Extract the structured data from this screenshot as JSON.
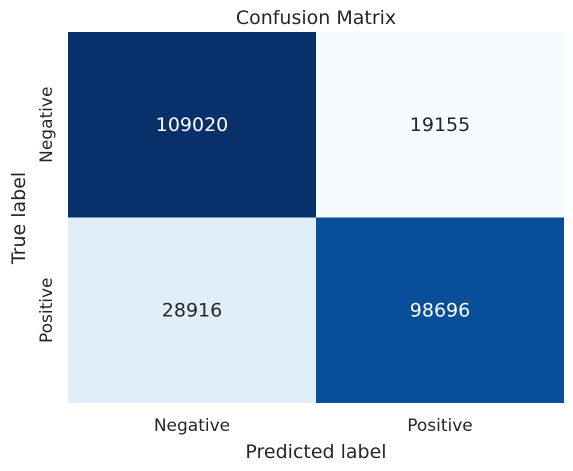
{
  "chart_data": {
    "type": "heatmap",
    "title": "Confusion Matrix",
    "xlabel": "Predicted label",
    "ylabel": "True label",
    "x_categories": [
      "Negative",
      "Positive"
    ],
    "y_categories": [
      "Negative",
      "Positive"
    ],
    "values": [
      [
        109020,
        19155
      ],
      [
        28916,
        98696
      ]
    ],
    "colormap": "Blues",
    "colors": {
      "min": "#f7fbff",
      "max": "#08306b"
    },
    "colorbar": false,
    "grid": false
  }
}
